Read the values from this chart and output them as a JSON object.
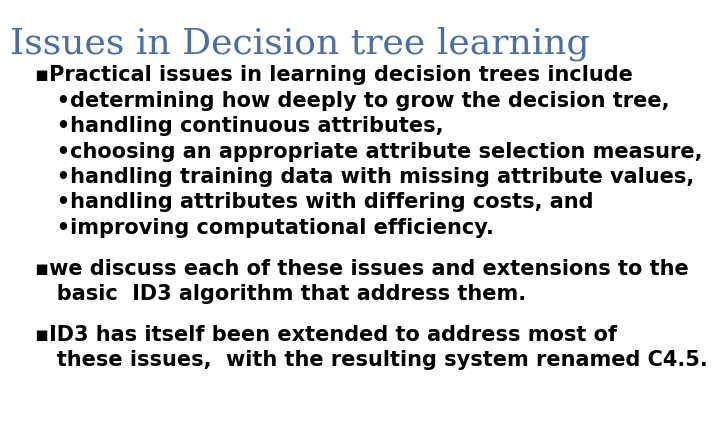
{
  "background_color": "#ffffff",
  "title": "Issues in Decision tree learning",
  "title_color": "#4a6fa0",
  "title_fontsize": 26,
  "body_color": "#000000",
  "body_fontsize": 15,
  "paragraphs": [
    {
      "lines": [
        [
          "▪",
          "Practical issues in learning decision trees include"
        ],
        [
          " ",
          "  •determining how deeply to grow the decision tree,"
        ],
        [
          " ",
          "  •handling continuous attributes,"
        ],
        [
          " ",
          "  •choosing an appropriate attribute selection measure,"
        ],
        [
          " ",
          "  •handling training data with missing attribute values,"
        ],
        [
          " ",
          "  •handling attributes with differing costs, and"
        ],
        [
          " ",
          "  •improving computational efficiency."
        ]
      ]
    },
    {
      "lines": [
        [
          "▪",
          "we discuss each of these issues and extensions to the"
        ],
        [
          " ",
          "  basic  ID3 algorithm that address them."
        ]
      ]
    },
    {
      "lines": [
        [
          "▪",
          "ID3 has itself been extended to address most of"
        ],
        [
          " ",
          "  these issues,  with the resulting system renamed C4.5."
        ]
      ]
    }
  ]
}
